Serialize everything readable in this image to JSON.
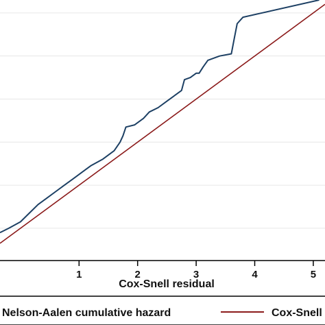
{
  "chart_data": {
    "type": "line",
    "title": "",
    "xlabel": "Cox-Snell residual",
    "ylabel": "",
    "xlim": [
      -0.35,
      5.2
    ],
    "ylim": [
      -0.75,
      5.3
    ],
    "x_ticks": [
      1,
      2,
      3,
      4,
      5
    ],
    "x_tick_labels": [
      "1",
      "2",
      "3",
      "4",
      "5"
    ],
    "y_gridlines": [
      0,
      1,
      2,
      3,
      4,
      5
    ],
    "grid": true,
    "legend_position": "bottom",
    "series": [
      {
        "name": "Nelson-Aalen cumulative hazard",
        "color": "#1c3f63",
        "x": [
          -0.35,
          -0.2,
          0.0,
          0.15,
          0.3,
          0.45,
          0.6,
          0.75,
          0.9,
          1.05,
          1.2,
          1.4,
          1.6,
          1.7,
          1.75,
          1.8,
          1.95,
          2.1,
          2.2,
          2.35,
          2.5,
          2.65,
          2.75,
          2.8,
          2.9,
          3.0,
          3.05,
          3.12,
          3.2,
          3.4,
          3.6,
          3.65,
          3.7,
          3.8,
          5.1
        ],
        "y": [
          -0.1,
          0.0,
          0.15,
          0.35,
          0.55,
          0.7,
          0.85,
          1.0,
          1.15,
          1.3,
          1.45,
          1.6,
          1.8,
          2.0,
          2.15,
          2.35,
          2.4,
          2.55,
          2.7,
          2.8,
          2.95,
          3.1,
          3.2,
          3.45,
          3.5,
          3.6,
          3.6,
          3.75,
          3.9,
          4.0,
          4.05,
          4.4,
          4.75,
          4.9,
          5.3
        ]
      },
      {
        "name": "Cox-Snell residual",
        "color": "#8b1a1a",
        "x": [
          -0.35,
          5.2
        ],
        "y": [
          -0.35,
          5.2
        ]
      }
    ]
  },
  "legend": {
    "items": [
      {
        "label": "Nelson-Aalen cumulative hazard",
        "color": "#1c3f63"
      },
      {
        "label": "Cox-Snell residual",
        "color": "#8b1a1a"
      }
    ]
  }
}
